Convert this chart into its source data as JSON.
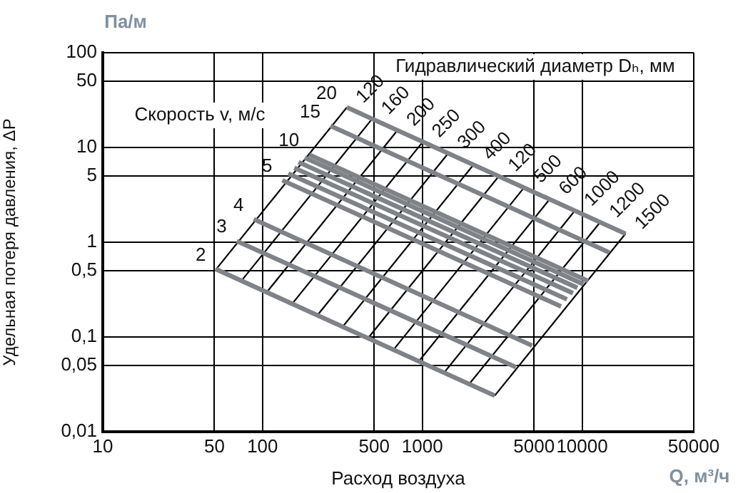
{
  "chart_data": {
    "type": "line",
    "xlabel": "Расход воздуха",
    "ylabel": "Удельная потеря давления, ΔP",
    "log": "xy",
    "grid": true,
    "legend": false,
    "marker": "none",
    "xlim": [
      10,
      50000
    ],
    "xticks": [
      10,
      50,
      100,
      500,
      1000,
      5000,
      10000,
      50000
    ],
    "ylim": [
      0.01,
      100
    ],
    "yticks": [
      {
        "value": 0.01,
        "label": "0,01"
      },
      {
        "value": 0.05,
        "label": "0,05"
      },
      {
        "value": 0.1,
        "label": "0,1"
      },
      {
        "value": 0.5,
        "label": "0,5"
      },
      1,
      5,
      10,
      50,
      100
    ],
    "annotations": [
      "Па/м",
      "Q, м³/ч",
      "Скорость v, м/с",
      "Гидравлический диаметр Dₕ, мм"
    ],
    "series": [
      {
        "name": "2",
        "color": "#7f8388",
        "x": [
          51,
          2840
        ],
        "values": [
          0.52,
          0.024
        ]
      },
      {
        "name": "3",
        "color": "#7f8388",
        "x": [
          69,
          3850
        ],
        "values": [
          1.03,
          0.048
        ]
      },
      {
        "name": "4",
        "color": "#7f8388",
        "x": [
          88,
          4870
        ],
        "values": [
          1.75,
          0.081
        ]
      },
      {
        "name": "5",
        "color": "#7f8388",
        "x": [
          133,
          7380
        ],
        "values": [
          4.5,
          0.21
        ]
      },
      {
        "color": "#7f8388",
        "x": [
          145,
          8040
        ],
        "values": [
          5.3,
          0.25
        ]
      },
      {
        "color": "#7f8388",
        "x": [
          158,
          8770
        ],
        "values": [
          6.1,
          0.29
        ]
      },
      {
        "color": "#7f8388",
        "x": [
          168,
          9350
        ],
        "values": [
          7,
          0.33
        ]
      },
      {
        "color": "#7f8388",
        "x": [
          184,
          10200
        ],
        "values": [
          7.8,
          0.36
        ]
      },
      {
        "name": "10",
        "color": "#7f8388",
        "x": [
          196,
          10900
        ],
        "values": [
          8.4,
          0.39
        ]
      },
      {
        "name": "15",
        "color": "#7f8388",
        "x": [
          266,
          14800
        ],
        "values": [
          16.9,
          0.78
        ]
      },
      {
        "name": "20",
        "color": "#7f8388",
        "x": [
          337,
          18700
        ],
        "values": [
          26.5,
          1.23
        ]
      },
      {
        "name": "120",
        "color": "#000000",
        "x": [
          51,
          337
        ],
        "values": [
          0.515,
          26.5
        ]
      },
      {
        "name": "160",
        "color": "#000000",
        "x": [
          73.6,
          486
        ],
        "values": [
          0.39,
          20.1
        ]
      },
      {
        "name": "200",
        "color": "#000000",
        "x": [
          106,
          700
        ],
        "values": [
          0.295,
          15.2
        ]
      },
      {
        "name": "250",
        "color": "#000000",
        "x": [
          153,
          1009
        ],
        "values": [
          0.223,
          11.5
        ]
      },
      {
        "name": "300",
        "color": "#000000",
        "x": [
          220,
          1455
        ],
        "values": [
          0.169,
          8.7
        ]
      },
      {
        "name": "400",
        "color": "#000000",
        "x": [
          317,
          2095
        ],
        "values": [
          0.128,
          6.6
        ]
      },
      {
        "name": "120",
        "color": "#000000",
        "x": [
          457,
          3020
        ],
        "values": [
          0.097,
          5
        ]
      },
      {
        "name": "500",
        "color": "#000000",
        "x": [
          659,
          4350
        ],
        "values": [
          0.073,
          3.8
        ]
      },
      {
        "name": "600",
        "color": "#000000",
        "x": [
          948,
          6270
        ],
        "values": [
          0.055,
          2.85
        ]
      },
      {
        "name": "1000",
        "color": "#000000",
        "x": [
          1368,
          9030
        ],
        "values": [
          0.042,
          2.16
        ]
      },
      {
        "name": "1200",
        "color": "#000000",
        "x": [
          1970,
          13000
        ],
        "values": [
          0.032,
          1.63
        ]
      },
      {
        "name": "1500",
        "color": "#000000",
        "x": [
          2840,
          18700
        ],
        "values": [
          0.024,
          1.23
        ]
      }
    ]
  }
}
